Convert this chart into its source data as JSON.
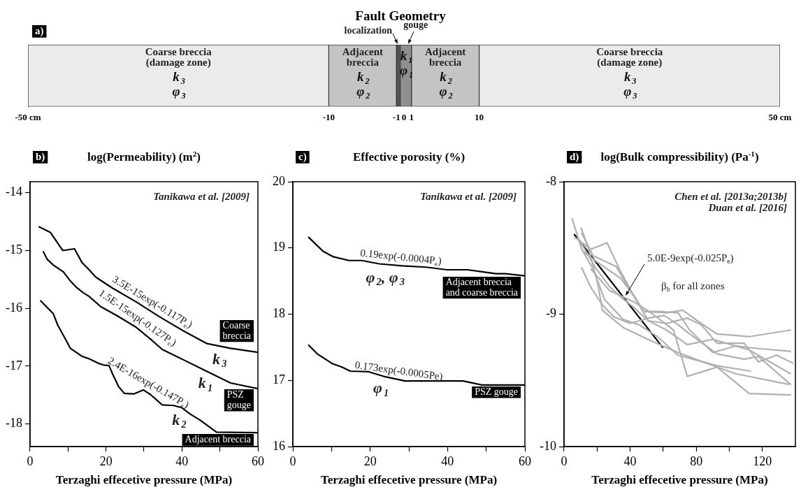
{
  "chart_data": [
    {
      "type": "bar",
      "orientation": "horizontal",
      "title": "Fault Geometry",
      "subtitle": "a)",
      "categories": [
        null
      ],
      "xlim": [
        -50,
        50
      ],
      "xticks": [
        {
          "value": -50,
          "label": "-50 cm"
        },
        -10,
        -1,
        0,
        1,
        10,
        {
          "value": 50,
          "label": "50 cm"
        }
      ],
      "series": [
        {
          "name": "Coarse breccia\n(damage zone)\nk$_{3}$\nφ$_{3}$",
          "color": "#ebebeb",
          "base": [
            -50
          ],
          "values": [
            40
          ]
        },
        {
          "name": "Adjacent\nbreccia\nk$_{2}$\nφ$_{2}$",
          "color": "#c4c4c4",
          "base": [
            -10
          ],
          "values": [
            9
          ]
        },
        {
          "name": "localization",
          "color": "#555555",
          "base": [
            -1
          ],
          "values": [
            0.5
          ]
        },
        {
          "name": "gouge\nk$_{1}$\nφ$_{1}$",
          "color": "#8f8f8f",
          "base": [
            -0.5
          ],
          "values": [
            1.5
          ]
        },
        {
          "name": "Adjacent\nbreccia\nk$_{2}$\nφ$_{2}$",
          "color": "#c4c4c4",
          "base": [
            1
          ],
          "values": [
            9
          ]
        },
        {
          "name": "Coarse breccia\n(damage zone)\nk$_{3}$\nφ$_{3}$",
          "color": "#ebebeb",
          "base": [
            10
          ],
          "values": [
            40
          ]
        }
      ]
    },
    {
      "type": "line",
      "title": "log(Permeability) (m$^{2}$)",
      "subtitle": "b)",
      "xlabel": "Terzaghi effecetive pressure (MPa)",
      "xlim": [
        0,
        60
      ],
      "xticks": [
        0,
        {
          "value": 10,
          "label": null
        },
        20,
        {
          "value": 30,
          "label": null
        },
        40,
        {
          "value": 50,
          "label": null
        },
        60
      ],
      "ylim": [
        -18.39,
        -13.81
      ],
      "yticks": [
        -18,
        -17,
        -16,
        -15,
        -14
      ],
      "series": [
        {
          "name": "Coarse\nbreccia",
          "color": "#000000",
          "x": [
            2.4,
            5.4,
            8.6,
            11.7,
            13.7,
            15.5,
            17.3,
            21.7,
            28,
            34.2,
            40.4,
            46.6,
            52.8,
            60
          ],
          "values": [
            -14.59,
            -14.69,
            -15.0,
            -14.97,
            -15.21,
            -15.33,
            -15.46,
            -15.65,
            -15.89,
            -16.15,
            -16.39,
            -16.61,
            -16.69,
            -16.76
          ]
        },
        {
          "name": "PSZ\ngouge",
          "color": "#000000",
          "x": [
            3.5,
            4.5,
            6.1,
            8.8,
            10.4,
            12.1,
            14,
            15.5,
            18.6,
            23,
            28,
            31.7,
            34.8,
            40.4,
            46.6,
            52.8,
            60
          ],
          "values": [
            -15.02,
            -15.15,
            -15.25,
            -15.37,
            -15.51,
            -15.63,
            -15.73,
            -15.79,
            -15.97,
            -16.13,
            -16.33,
            -16.53,
            -16.71,
            -16.89,
            -17.09,
            -17.29,
            -17.39
          ]
        },
        {
          "name": "Adjacent breccia",
          "color": "#000000",
          "x": [
            2.8,
            6.1,
            7.3,
            9.3,
            10.6,
            13.7,
            15.5,
            18,
            19.4,
            20.8,
            21.7,
            23.3,
            24.8,
            27.3,
            29.8,
            31.7,
            34.8,
            37.9,
            40,
            42.2,
            44.7,
            49.1,
            60
          ],
          "values": [
            -15.87,
            -16.09,
            -16.29,
            -16.53,
            -16.69,
            -16.83,
            -16.87,
            -16.95,
            -16.98,
            -16.99,
            -17.13,
            -17.35,
            -17.47,
            -17.48,
            -17.41,
            -17.49,
            -17.67,
            -17.68,
            -17.72,
            -17.83,
            -17.93,
            -18.14,
            -18.15
          ]
        }
      ],
      "annotations": [
        "Tanikawa et al. [2009]",
        {
          "text": "3.5E-15exp(-0.117P$_{e}$)",
          "x": 31,
          "y": -16.02
        },
        {
          "text": "1.5E-15exp(-0.127P$_{e}$)",
          "x": 27,
          "y": -16.29
        },
        {
          "text": "2.4E-16exp(-0.147P$_{e}$)",
          "x": 30,
          "y": -17.42
        },
        {
          "text": "k$_{3}$",
          "x": 49.7,
          "y": -16.65
        },
        {
          "text": "k$_{1}$",
          "x": 46,
          "y": -17.07
        },
        {
          "text": "k$_{2}$",
          "x": 39.1,
          "y": -17.7
        }
      ]
    },
    {
      "type": "line",
      "title": "Effective porosity (%)",
      "subtitle": "c)",
      "xlabel": "Terzaghi effecetive pressure (MPa)",
      "xlim": [
        0,
        60
      ],
      "xticks": [
        0,
        {
          "value": 10,
          "label": null
        },
        20,
        {
          "value": 30,
          "label": null
        },
        40,
        {
          "value": 50,
          "label": null
        },
        60
      ],
      "ylim": [
        16,
        20
      ],
      "yticks": [
        16,
        17,
        18,
        19,
        20
      ],
      "series": [
        {
          "name": "Adjacent breccia\nand coarse breccia",
          "color": "#000000",
          "x": [
            4.1,
            7.8,
            10.3,
            14.5,
            17.8,
            22.3,
            28.3,
            34.4,
            39.8,
            45.2,
            48.9,
            52.5,
            54.9,
            60
          ],
          "values": [
            19.16,
            18.95,
            18.87,
            18.81,
            18.81,
            18.76,
            18.73,
            18.71,
            18.67,
            18.67,
            18.64,
            18.61,
            18.61,
            18.58
          ]
        },
        {
          "name": "PSZ gouge",
          "color": "#000000",
          "x": [
            4.1,
            6.3,
            10.3,
            12.7,
            14.8,
            19.6,
            23.5,
            29,
            44,
            48.9,
            60
          ],
          "values": [
            17.53,
            17.4,
            17.25,
            17.2,
            17.14,
            17.13,
            17.06,
            16.99,
            16.99,
            16.93,
            16.93
          ]
        }
      ],
      "annotations": [
        "Tanikawa et al. [2009]",
        {
          "text": "0.19exp(-0.0004P$_{e}$)",
          "x": 27.7,
          "y": 18.73
        },
        {
          "text": "0.173exp(-0.0005Pe)",
          "x": 27.1,
          "y": 17.01
        },
        {
          "text": "φ$_{2}$, φ$_{3}$",
          "x": 23.5,
          "y": 18.755
        },
        {
          "text": "φ$_{1}$",
          "x": 22.6,
          "y": 17.08
        }
      ]
    },
    {
      "type": "line",
      "title": "log(Bulk compressibility) (Pa$^{-1}$)",
      "subtitle": "d)",
      "xlabel": "Terzaghi effecetive pressure (MPa)",
      "xlim": [
        0,
        140
      ],
      "xticks": [
        0,
        {
          "value": 20,
          "label": null
        },
        40,
        {
          "value": 60,
          "label": null
        },
        80,
        {
          "value": 100,
          "label": null
        },
        120
      ],
      "ylim": [
        -10,
        -8
      ],
      "yticks": [
        -10,
        -9,
        -8
      ],
      "series": [
        {
          "color": "#b0b0b0",
          "x": [
            4.9,
            10.7,
            17.6,
            24.6,
            35.7,
            45.4,
            56.5,
            69,
            92.6,
            112.8
          ],
          "values": [
            -8.28,
            -8.51,
            -8.66,
            -8.89,
            -9.04,
            -9.08,
            -9.17,
            -9.31,
            -9.39,
            -9.43
          ]
        },
        {
          "color": "#b0b0b0",
          "x": [
            10.4,
            14.9,
            20.4,
            23.2,
            28.8,
            35.7,
            52.4,
            69,
            92.6,
            112,
            137
          ],
          "values": [
            -8.35,
            -8.51,
            -8.77,
            -8.97,
            -9.03,
            -9.1,
            -9.2,
            -9.29,
            -9.4,
            -9.6,
            -9.61
          ]
        },
        {
          "color": "#b0b0b0",
          "x": [
            10.7,
            16.3,
            23.2,
            30.1,
            39.9,
            51,
            60.7,
            69,
            76,
            92.6,
            109,
            117.6,
            137
          ],
          "values": [
            -8.65,
            -8.8,
            -8.93,
            -9.02,
            -9.07,
            -9.03,
            -9.01,
            -9.08,
            -9.15,
            -9.3,
            -9.34,
            -9.32,
            -9.53
          ]
        },
        {
          "color": "#b0b0b0",
          "x": [
            6.5,
            16.3,
            26,
            34.3,
            41.3,
            48.2,
            58,
            69,
            76,
            90,
            103.8,
            117.6,
            137
          ],
          "values": [
            -8.42,
            -8.51,
            -8.46,
            -8.68,
            -8.84,
            -8.98,
            -8.98,
            -8.99,
            -9.12,
            -9.29,
            -9.24,
            -9.26,
            -9.28
          ]
        },
        {
          "color": "#b0b0b0",
          "x": [
            10.7,
            17.6,
            31.5,
            39.9,
            48.2,
            62,
            71.8,
            82.9,
            92.6,
            112,
            137
          ],
          "values": [
            -8.39,
            -8.56,
            -8.64,
            -8.82,
            -8.98,
            -8.99,
            -8.97,
            -9.07,
            -9.15,
            -9.17,
            -9.12
          ]
        },
        {
          "color": "#b0b0b0",
          "x": [
            9.3,
            19,
            27.4,
            34.3,
            41.3,
            51,
            62,
            74.6,
            83,
            92.6,
            109,
            117.6,
            128.7,
            138.5
          ],
          "values": [
            -8.44,
            -8.65,
            -8.79,
            -8.87,
            -8.94,
            -9.05,
            -9.07,
            -9.03,
            -9.08,
            -9.22,
            -9.22,
            -9.36,
            -9.31,
            -9.37
          ]
        },
        {
          "color": "#b0b0b0",
          "x": [
            12,
            20.4,
            34.3,
            42.6,
            51,
            62,
            74.6,
            90,
            112,
            137
          ],
          "values": [
            -8.53,
            -8.61,
            -8.73,
            -8.87,
            -9.05,
            -9.12,
            -9.23,
            -9.19,
            -9.27,
            -9.45
          ]
        },
        {
          "color": "#b0b0b0",
          "x": [
            16.3,
            27.4,
            42.6,
            53.8,
            66.2,
            74.6,
            92.6,
            103.8,
            135.7
          ],
          "values": [
            -8.66,
            -8.82,
            -8.91,
            -9.0,
            -9.12,
            -9.47,
            -9.4,
            -9.45,
            -9.53
          ]
        },
        {
          "color": "#000000",
          "x": [
            6.3,
            59.6
          ],
          "values": [
            -8.4,
            -9.25
          ]
        }
      ],
      "annotations": [
        "Chen et al. [2013a;2013b]\nDuan et al. [2016]",
        {
          "text": "5.0E-9exp(-0.025P$_{e}$)",
          "x": 36,
          "y": -8.874
        },
        "β$_{b}$ for all zones"
      ]
    }
  ]
}
